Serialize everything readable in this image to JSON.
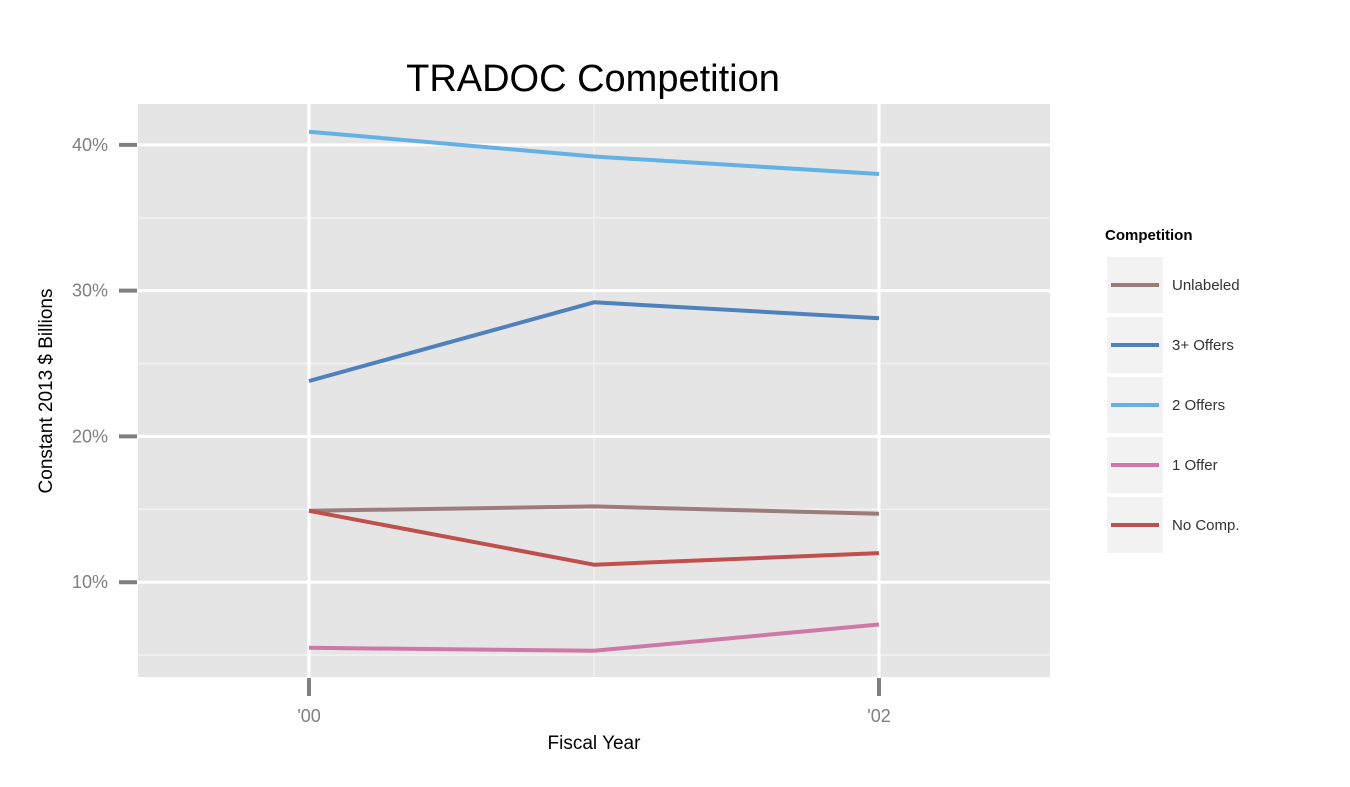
{
  "chart_data": {
    "type": "line",
    "title": "TRADOC Competition",
    "xlabel": "Fiscal Year",
    "ylabel": "Constant 2013 $ Billions",
    "x": [
      2000,
      2001,
      2002
    ],
    "xlim": [
      1999.4,
      2002.6
    ],
    "ylim": [
      3.5,
      42.8
    ],
    "x_ticks": [
      {
        "value": 2000,
        "label": "'00"
      },
      {
        "value": 2002,
        "label": "'02"
      }
    ],
    "y_ticks": [
      {
        "value": 10,
        "label": "10%"
      },
      {
        "value": 20,
        "label": "20%"
      },
      {
        "value": 30,
        "label": "30%"
      },
      {
        "value": 40,
        "label": "40%"
      }
    ],
    "y_minor_gridlines": [
      5,
      15,
      25,
      35
    ],
    "x_minor_gridlines": [
      2001
    ],
    "grid": true,
    "background": "#e5e5e5",
    "legend": {
      "title": "Competition",
      "placement": "right",
      "key_background": "#f2f2f2"
    },
    "series": [
      {
        "name": "Unlabeled",
        "color": "#9d7b7b",
        "values": [
          14.9,
          15.2,
          14.7
        ]
      },
      {
        "name": "3+ Offers",
        "color": "#4f81bd",
        "values": [
          23.8,
          29.2,
          28.1
        ]
      },
      {
        "name": "2 Offers",
        "color": "#63b1e5",
        "values": [
          40.9,
          39.2,
          38.0
        ]
      },
      {
        "name": "1 Offer",
        "color": "#cc79a7",
        "values": [
          5.5,
          5.3,
          7.1
        ]
      },
      {
        "name": "No Comp.",
        "color": "#c0504d",
        "values": [
          14.9,
          11.2,
          12.0
        ]
      }
    ]
  }
}
